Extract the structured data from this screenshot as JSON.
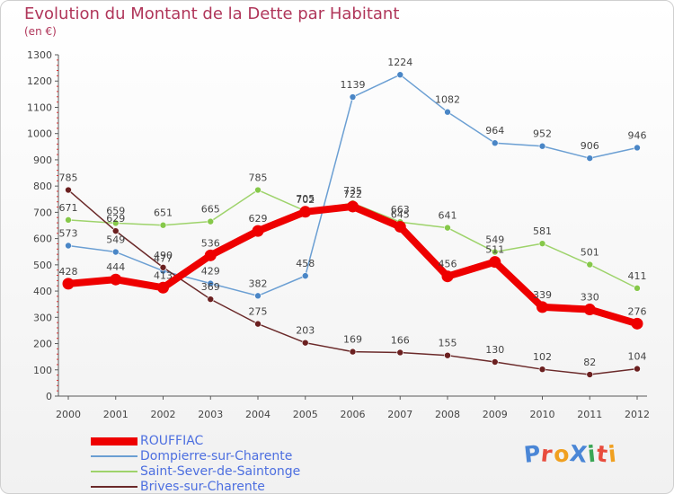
{
  "header": {
    "title": "Evolution du Montant de la Dette par Habitant",
    "subtitle": "(en €)"
  },
  "colors": {
    "axis": "#5a5a5a",
    "grid_ticks": "#d93030",
    "label": "#444444",
    "title": "#b0365a",
    "legend_text": "#4d6fe0"
  },
  "logo": {
    "text": "ProXiti",
    "letter_colors": [
      "#4a86d6",
      "#e84c3d",
      "#f0a020",
      "#4a86d6",
      "#3aa655",
      "#e84c3d",
      "#f0a020"
    ]
  },
  "chart_data": {
    "type": "line",
    "title": "Evolution du Montant de la Dette par Habitant",
    "subtitle": "(en €)",
    "xlabel": "",
    "ylabel": "",
    "ylim": [
      0,
      1300
    ],
    "y_ticks": [
      0,
      100,
      200,
      300,
      400,
      500,
      600,
      700,
      800,
      900,
      1000,
      1100,
      1200,
      1300
    ],
    "x": [
      "2000",
      "2001",
      "2002",
      "2003",
      "2004",
      "2005",
      "2006",
      "2007",
      "2008",
      "2009",
      "2010",
      "2011",
      "2012"
    ],
    "grid": false,
    "legend_position": "bottom-left",
    "series": [
      {
        "name": "ROUFFIAC",
        "color": "#ee0000",
        "marker_color": "#ee0000",
        "width": 8,
        "values": [
          428,
          444,
          413,
          536,
          629,
          702,
          722,
          645,
          456,
          511,
          339,
          330,
          276
        ]
      },
      {
        "name": "Dompierre-sur-Charente",
        "color": "#6b9fd3",
        "marker_color": "#4a86c6",
        "width": 1.5,
        "values": [
          573,
          549,
          477,
          429,
          382,
          458,
          1139,
          1224,
          1082,
          964,
          952,
          906,
          946
        ]
      },
      {
        "name": "Saint-Sever-de-Saintonge",
        "color": "#9ed36b",
        "marker_color": "#86c84a",
        "width": 1.5,
        "values": [
          671,
          659,
          651,
          665,
          785,
          705,
          735,
          663,
          641,
          549,
          581,
          501,
          411
        ]
      },
      {
        "name": "Brives-sur-Charente",
        "color": "#6b2a2a",
        "marker_color": "#6b2020",
        "width": 1.5,
        "values": [
          785,
          629,
          490,
          369,
          275,
          203,
          169,
          166,
          155,
          130,
          102,
          82,
          104
        ]
      }
    ]
  }
}
